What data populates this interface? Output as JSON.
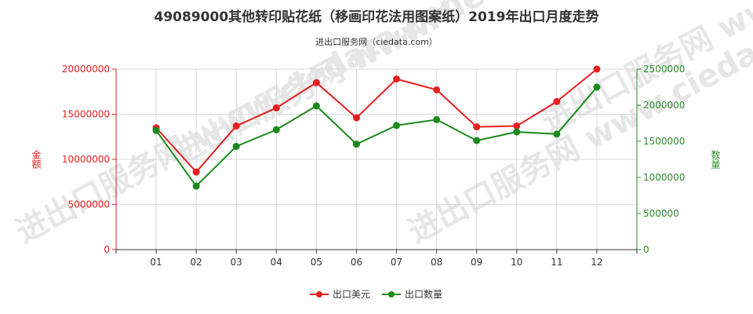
{
  "chart_data": {
    "type": "line",
    "title": "49089000其他转印贴花纸（移画印花法用图案纸）2019年出口月度走势",
    "subtitle": "进出口服务网（ciedata.com）",
    "watermark": "进出口服务网 www.ciedata.com",
    "categories": [
      "01",
      "02",
      "03",
      "04",
      "05",
      "06",
      "07",
      "08",
      "09",
      "10",
      "11",
      "12"
    ],
    "y_left": {
      "label": "金额",
      "ylim": [
        0,
        20000000
      ],
      "ticks": [
        "0",
        "5000000",
        "10000000",
        "15000000",
        "20000000"
      ],
      "color": "#e62020"
    },
    "y_right": {
      "label": "数量",
      "ylim": [
        0,
        2500000
      ],
      "ticks": [
        "0",
        "500000",
        "1000000",
        "1500000",
        "2000000",
        "2500000"
      ],
      "color": "#2a8a2a"
    },
    "series": [
      {
        "name": "出口美元",
        "axis": "left",
        "color": "#e62020",
        "values": [
          13500000,
          8600000,
          13700000,
          15700000,
          18500000,
          14600000,
          18900000,
          17700000,
          13600000,
          13700000,
          16400000,
          20000000
        ]
      },
      {
        "name": "出口数量",
        "axis": "right",
        "color": "#1a8a1a",
        "values": [
          1650000,
          880000,
          1430000,
          1660000,
          1990000,
          1460000,
          1720000,
          1800000,
          1510000,
          1630000,
          1600000,
          2250000
        ]
      }
    ],
    "grid": true,
    "legend": "bottom-center"
  }
}
